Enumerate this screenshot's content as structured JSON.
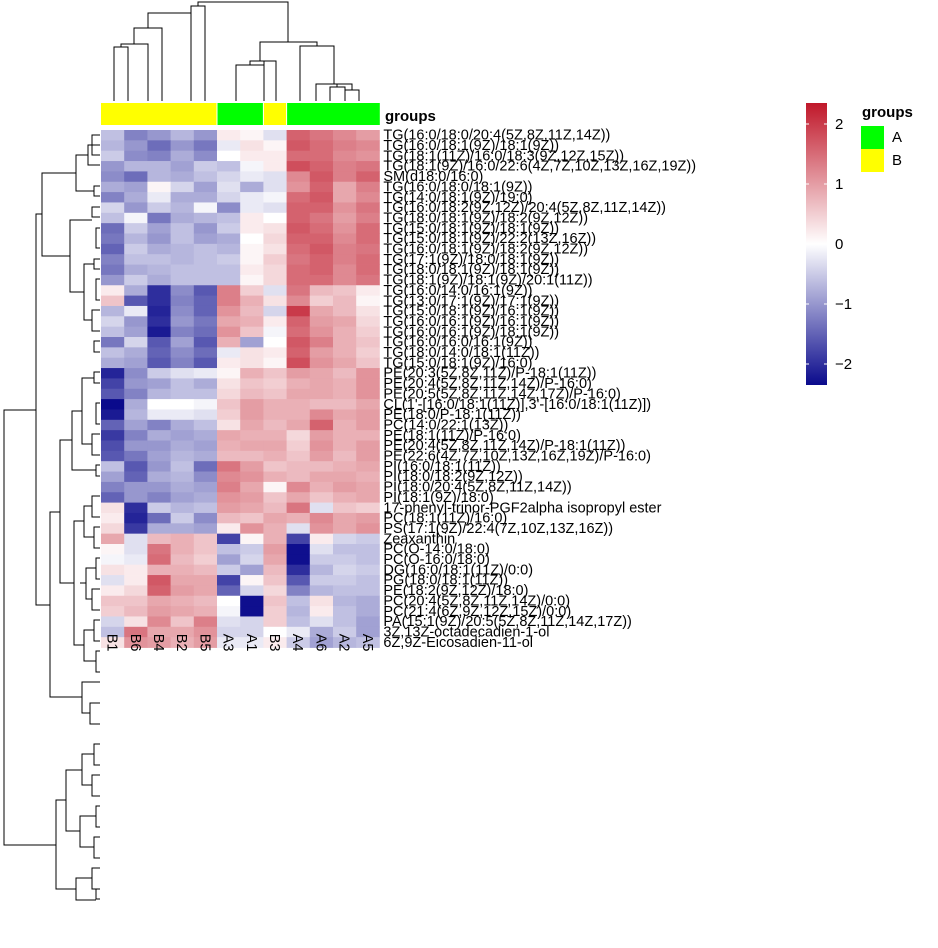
{
  "chart_data": {
    "type": "heatmap",
    "title": "",
    "columns": [
      "B1",
      "B6",
      "B4",
      "B2",
      "B5",
      "A3",
      "A1",
      "B3",
      "A4",
      "A6",
      "A2",
      "A5"
    ],
    "column_groups": [
      "B",
      "B",
      "B",
      "B",
      "B",
      "A",
      "A",
      "B",
      "A",
      "A",
      "A",
      "A"
    ],
    "annotation_label": "groups",
    "groups_legend": {
      "title": "groups",
      "items": [
        {
          "label": "A",
          "color": "#00ff00"
        },
        {
          "label": "B",
          "color": "#ffff00"
        }
      ]
    },
    "colorscale": {
      "stops": [
        {
          "value": -2.35,
          "color": "#0a0a8c"
        },
        {
          "value": 0,
          "color": "#ffffff"
        },
        {
          "value": 2.35,
          "color": "#c0182a"
        }
      ],
      "ticks": [
        "2",
        "1",
        "0",
        "−1",
        "−2"
      ],
      "tick_values": [
        2,
        1,
        0,
        -1,
        -2
      ],
      "range": [
        -2.35,
        2.35
      ]
    },
    "rows": [
      {
        "label": "TG(16:0/18:0/20:4(5Z,8Z,11Z,14Z))",
        "values": [
          -0.6,
          -1.2,
          -1.0,
          -0.7,
          -1.0,
          0.2,
          0.1,
          -0.3,
          1.6,
          1.4,
          1.2,
          1.0
        ]
      },
      {
        "label": "TG(16:0/18:1(9Z)/18:1(9Z))",
        "values": [
          -0.7,
          -1.0,
          -1.4,
          -1.0,
          -1.3,
          -0.2,
          0.3,
          0.1,
          1.7,
          1.5,
          1.3,
          1.2
        ]
      },
      {
        "label": "TG(18:1(11Z)/16:0/18:3(9Z,12Z,15Z))",
        "values": [
          -0.5,
          -1.1,
          -1.2,
          -0.8,
          -1.1,
          0.0,
          0.2,
          0.2,
          1.5,
          1.5,
          1.2,
          1.1
        ]
      },
      {
        "label": "TG(18:1(9Z)/16:0/22:6(4Z,7Z,10Z,13Z,16Z,19Z))",
        "values": [
          -1.0,
          -0.7,
          -0.7,
          -0.9,
          -0.5,
          -0.6,
          -0.1,
          0.2,
          1.8,
          1.6,
          1.3,
          1.4
        ]
      },
      {
        "label": "SM(d18:0/16:0)",
        "values": [
          -1.1,
          -1.4,
          -0.7,
          -0.8,
          -0.6,
          -0.4,
          -0.2,
          -0.3,
          1.2,
          1.7,
          1.3,
          1.6
        ]
      },
      {
        "label": "TG(16:0/18:0/18:1(9Z))",
        "values": [
          -0.8,
          -0.9,
          0.1,
          -0.4,
          -0.9,
          -0.3,
          -0.8,
          -0.3,
          1.1,
          1.6,
          0.9,
          1.3
        ]
      },
      {
        "label": "TG(14:0/18:1(9Z)/19:0)",
        "values": [
          -1.2,
          -0.8,
          -0.2,
          -0.8,
          -0.8,
          -0.4,
          -0.2,
          -0.1,
          1.5,
          1.7,
          0.9,
          1.2
        ]
      },
      {
        "label": "TG(16:0/18:2(9Z,12Z)/20:4(5Z,8Z,11Z,14Z))",
        "values": [
          -0.4,
          -1.0,
          -0.5,
          -0.7,
          -0.1,
          -1.1,
          -0.2,
          -0.3,
          1.6,
          1.6,
          1.1,
          1.4
        ]
      },
      {
        "label": "TG(18:0/18:1(9Z)/18:2(9Z,12Z))",
        "values": [
          -0.6,
          -0.1,
          -1.3,
          -0.8,
          -0.7,
          -0.6,
          0.2,
          0.0,
          1.6,
          1.4,
          1.0,
          1.3
        ]
      },
      {
        "label": "TG(15:0/18:1(9Z)/18:1(9Z))",
        "values": [
          -1.4,
          -0.5,
          -0.9,
          -0.6,
          -1.0,
          -0.5,
          0.2,
          0.3,
          1.7,
          1.5,
          1.1,
          1.5
        ]
      },
      {
        "label": "TG(15:0/18:1(9Z)/22:2(13Z,16Z))",
        "values": [
          -1.3,
          -0.7,
          -1.0,
          -0.6,
          -0.9,
          -0.8,
          0.0,
          0.4,
          1.6,
          1.6,
          1.2,
          1.5
        ]
      },
      {
        "label": "TG(16:0/18:1(9Z)/18:2(9Z,12Z))",
        "values": [
          -1.5,
          -0.5,
          -0.8,
          -0.7,
          -0.6,
          -0.7,
          0.1,
          0.3,
          1.5,
          1.7,
          1.3,
          1.4
        ]
      },
      {
        "label": "TG(17:1(9Z)/18:0/18:1(9Z))",
        "values": [
          -1.2,
          -0.6,
          -0.6,
          -0.7,
          -0.6,
          -0.5,
          0.1,
          0.5,
          1.4,
          1.6,
          1.3,
          1.5
        ]
      },
      {
        "label": "TG(18:0/18:1(9Z)/18:1(9Z))",
        "values": [
          -1.3,
          -0.8,
          -0.7,
          -0.6,
          -0.6,
          -0.6,
          0.2,
          0.4,
          1.5,
          1.6,
          1.2,
          1.5
        ]
      },
      {
        "label": "TG(18:1(9Z)/18:1(9Z)/20:1(11Z))",
        "values": [
          -1.0,
          -0.5,
          -0.8,
          -0.6,
          -0.6,
          -0.6,
          0.1,
          0.4,
          1.5,
          1.5,
          1.2,
          1.4
        ]
      },
      {
        "label": "TG(16:0/14:0/16:1(9Z))",
        "values": [
          0.2,
          -0.8,
          -2.0,
          -1.1,
          -1.6,
          1.3,
          0.5,
          -0.3,
          1.4,
          0.7,
          0.6,
          0.2
        ]
      },
      {
        "label": "TG(13:0/17:1(9Z)/17:1(9Z))",
        "values": [
          0.6,
          -1.6,
          -2.0,
          -1.2,
          -1.5,
          1.3,
          0.8,
          0.3,
          1.2,
          0.5,
          0.7,
          0.1
        ]
      },
      {
        "label": "TG(15:0/18:1(9Z)/16:1(9Z))",
        "values": [
          -0.7,
          -0.2,
          -2.1,
          -1.1,
          -1.5,
          1.1,
          0.7,
          -0.4,
          2.0,
          0.9,
          0.7,
          0.3
        ]
      },
      {
        "label": "TG(16:0/16:1(9Z)/16:1(9Z))",
        "values": [
          -0.4,
          -1.0,
          -2.0,
          -1.0,
          -1.3,
          0.9,
          0.8,
          0.2,
          1.6,
          1.0,
          0.9,
          0.4
        ]
      },
      {
        "label": "TG(16:0/16:1(9Z)/18:1(9Z))",
        "values": [
          -0.6,
          -0.9,
          -2.2,
          -1.2,
          -1.4,
          1.1,
          0.6,
          -0.1,
          1.5,
          1.1,
          0.8,
          0.5
        ]
      },
      {
        "label": "TG(16:0/16:0/16:1(9Z))",
        "values": [
          -1.3,
          -0.4,
          -1.6,
          -0.9,
          -1.6,
          0.8,
          -0.9,
          0.0,
          1.7,
          1.3,
          0.8,
          0.6
        ]
      },
      {
        "label": "TG(18:0/14:0/18:1(11Z))",
        "values": [
          -0.6,
          -0.8,
          -1.5,
          -1.1,
          -1.4,
          -0.2,
          0.3,
          0.2,
          1.6,
          1.0,
          0.8,
          0.5
        ]
      },
      {
        "label": "TG(15:0/18:1(9Z)/16:0)",
        "values": [
          -0.8,
          -0.9,
          -1.6,
          -1.2,
          -1.6,
          0.2,
          0.3,
          0.1,
          1.8,
          1.1,
          0.9,
          0.6
        ]
      },
      {
        "label": "PE(20:3(5Z,8Z,11Z)/P-18:1(11Z))",
        "values": [
          -2.1,
          -1.1,
          -0.5,
          -0.3,
          -0.2,
          0.1,
          0.8,
          0.6,
          1.0,
          0.9,
          0.7,
          1.1
        ]
      },
      {
        "label": "PE(20:4(5Z,8Z,11Z,14Z)/P-16:0)",
        "values": [
          -1.8,
          -1.0,
          -0.9,
          -0.6,
          -0.8,
          0.3,
          0.6,
          0.5,
          0.8,
          0.9,
          0.8,
          1.1
        ]
      },
      {
        "label": "PE(20:5(5Z,8Z,11Z,14Z,17Z)/P-16:0)",
        "values": [
          -1.6,
          -1.2,
          -0.7,
          -0.6,
          -0.6,
          0.4,
          0.7,
          0.6,
          0.9,
          0.9,
          0.8,
          1.1
        ]
      },
      {
        "label": "CL(1'-[16:0/18:1(11Z)],3'-[16:0/18:1(11Z)])",
        "values": [
          -2.35,
          -0.8,
          0.0,
          0.0,
          -0.1,
          0.6,
          1.0,
          0.8,
          0.8,
          0.7,
          0.7,
          0.9
        ]
      },
      {
        "label": "PE(18:0/P-18:1(11Z))",
        "values": [
          -2.2,
          -0.7,
          -0.2,
          -0.2,
          -0.3,
          0.5,
          1.0,
          0.8,
          0.8,
          1.2,
          0.9,
          1.0
        ]
      },
      {
        "label": "PC(14:0/22:1(13Z))",
        "values": [
          -1.5,
          -0.9,
          -1.2,
          -0.8,
          -0.6,
          0.3,
          0.9,
          0.7,
          0.9,
          1.6,
          0.8,
          1.0
        ]
      },
      {
        "label": "PE(18:1(11Z)/P-16:0)",
        "values": [
          -1.9,
          -1.2,
          -0.8,
          -0.9,
          -0.8,
          0.9,
          0.8,
          0.8,
          0.4,
          1.0,
          0.8,
          0.8
        ]
      },
      {
        "label": "PE(20:4(5Z,8Z,11Z,14Z)/P-18:1(11Z))",
        "values": [
          -1.7,
          -1.0,
          -1.0,
          -0.8,
          -0.9,
          0.8,
          0.9,
          0.9,
          0.5,
          1.1,
          0.8,
          1.0
        ]
      },
      {
        "label": "PE(22:6(4Z,7Z,10Z,13Z,16Z,19Z)/P-16:0)",
        "values": [
          -1.6,
          -1.3,
          -0.9,
          -0.7,
          -0.8,
          0.7,
          0.7,
          0.8,
          0.6,
          1.0,
          0.7,
          1.0
        ]
      },
      {
        "label": "PI(16:0/18:1(11Z))",
        "values": [
          -0.6,
          -1.6,
          -1.0,
          -0.6,
          -1.4,
          1.4,
          1.0,
          0.6,
          0.7,
          0.7,
          0.8,
          0.9
        ]
      },
      {
        "label": "PI(18:0/18:2(9Z,12Z))",
        "values": [
          -0.9,
          -1.5,
          -0.8,
          -0.7,
          -1.1,
          1.2,
          1.1,
          0.8,
          0.7,
          0.9,
          0.9,
          0.8
        ]
      },
      {
        "label": "PI(18:0/20:4(5Z,8Z,11Z,14Z))",
        "values": [
          -1.2,
          -1.0,
          -1.0,
          -0.8,
          -0.9,
          1.3,
          0.9,
          0.1,
          1.2,
          0.8,
          1.0,
          0.9
        ]
      },
      {
        "label": "PI(18:1(9Z)/18:0)",
        "values": [
          -1.5,
          -1.0,
          -1.2,
          -0.9,
          -0.8,
          1.1,
          1.0,
          0.6,
          0.9,
          0.6,
          0.8,
          0.9
        ]
      },
      {
        "label": "17-phenyl-trinor-PGF2alpha isopropyl ester",
        "values": [
          0.3,
          -2.0,
          -0.5,
          -0.7,
          -0.6,
          1.0,
          0.9,
          0.7,
          1.4,
          -0.3,
          0.6,
          0.5
        ]
      },
      {
        "label": "PC(18:1(11Z)/16:0)",
        "values": [
          0.2,
          -2.1,
          -1.4,
          -0.5,
          -1.1,
          0.7,
          0.6,
          0.9,
          0.8,
          1.2,
          0.9,
          1.0
        ]
      },
      {
        "label": "PS(17:1(9Z)/22:4(7Z,10Z,13Z,16Z))",
        "values": [
          0.4,
          -1.9,
          -0.8,
          -0.8,
          -0.9,
          0.2,
          1.1,
          0.8,
          -0.3,
          1.1,
          0.9,
          1.1
        ]
      },
      {
        "label": "Zeaxanthin",
        "values": [
          0.9,
          -0.3,
          0.7,
          0.8,
          0.6,
          -1.8,
          0.1,
          0.8,
          -1.8,
          0.2,
          -0.4,
          -0.5
        ]
      },
      {
        "label": "PC(O-14:0/18:0)",
        "values": [
          0.1,
          -0.3,
          1.4,
          0.8,
          0.6,
          -0.6,
          -0.5,
          1.0,
          -2.3,
          -0.3,
          -0.6,
          -0.6
        ]
      },
      {
        "label": "PC(O-16:0/18:0)",
        "values": [
          -0.1,
          -0.2,
          1.5,
          0.7,
          0.5,
          -0.9,
          -0.4,
          0.9,
          -2.3,
          -0.5,
          -0.5,
          -0.6
        ]
      },
      {
        "label": "DG(16:0/18:1(11Z)/0:0)",
        "values": [
          0.3,
          0.2,
          0.8,
          0.8,
          0.7,
          -0.5,
          -0.9,
          0.7,
          -2.0,
          -0.7,
          -0.4,
          -0.5
        ]
      },
      {
        "label": "PG(18:0/18:1(11Z))",
        "values": [
          -0.3,
          0.2,
          1.7,
          0.9,
          0.9,
          -1.8,
          0.1,
          0.6,
          -1.6,
          -0.5,
          -0.5,
          -0.6
        ]
      },
      {
        "label": "PE(18:2(9Z,12Z)/18:0)",
        "values": [
          0.2,
          0.4,
          1.6,
          1.0,
          0.9,
          -1.5,
          -0.4,
          0.4,
          -1.2,
          -0.7,
          -0.6,
          -0.6
        ]
      },
      {
        "label": "PC(20:4(5Z,8Z,11Z,14Z)/0:0)",
        "values": [
          0.6,
          0.6,
          0.9,
          0.8,
          0.7,
          0.0,
          -2.3,
          0.6,
          -0.6,
          0.3,
          -0.7,
          -0.8
        ]
      },
      {
        "label": "PC(21:4(6Z,9Z,12Z,15Z)/0:0)",
        "values": [
          0.5,
          0.7,
          1.0,
          0.9,
          0.8,
          -0.1,
          -2.3,
          0.5,
          -0.7,
          0.2,
          -0.6,
          -0.8
        ]
      },
      {
        "label": "PA(15:1(9Z)/20:5(5Z,8Z,11Z,14Z,17Z))",
        "values": [
          -0.4,
          0.3,
          1.2,
          0.6,
          1.3,
          -0.3,
          -0.4,
          0.5,
          -0.6,
          -0.3,
          -0.6,
          -0.9
        ]
      },
      {
        "label": "3Z,13Z-octadecadien-1-ol",
        "values": [
          -0.6,
          1.4,
          0.9,
          0.9,
          1.1,
          -0.4,
          -0.4,
          0.0,
          -0.2,
          -0.8,
          -0.5,
          -0.9
        ]
      },
      {
        "label": "6Z,9Z-Eicosadien-11-ol",
        "values": [
          0.3,
          1.1,
          1.0,
          0.8,
          1.0,
          -0.2,
          -0.2,
          0.2,
          -0.5,
          -0.9,
          -0.7,
          -0.6
        ]
      }
    ]
  }
}
